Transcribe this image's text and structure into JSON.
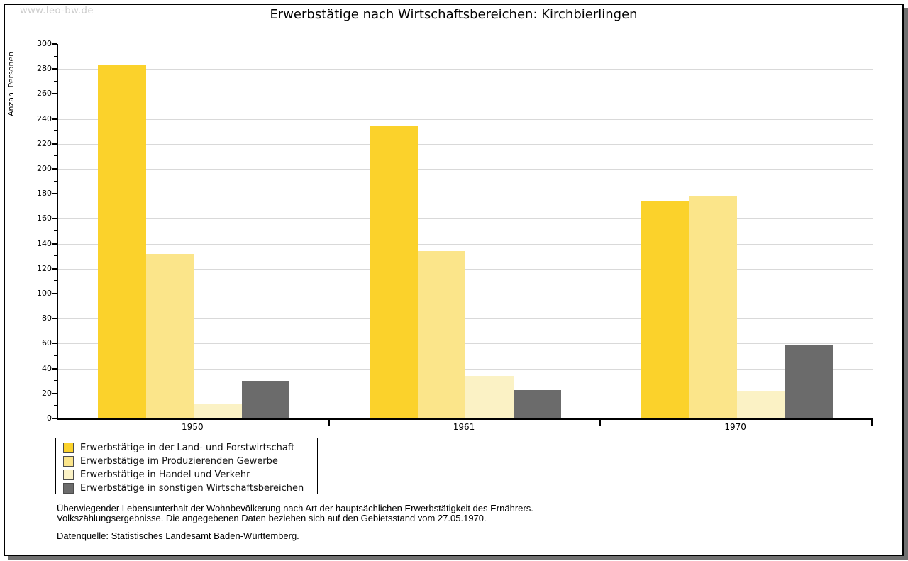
{
  "watermark": "www.leo-bw.de",
  "title": "Erwerbstätige nach Wirtschaftsbereichen: Kirchbierlingen",
  "chart_data": {
    "type": "bar",
    "title": "Erwerbstätige nach Wirtschaftsbereichen: Kirchbierlingen",
    "xlabel": "",
    "ylabel": "Anzahl Personen",
    "ylim": [
      0,
      300
    ],
    "ytick_major_step": 20,
    "ytick_minor_step": 10,
    "grid": true,
    "gridline_color": "#d9d9d9",
    "legend_position": "bottom-left",
    "categories": [
      "1950",
      "1961",
      "1970"
    ],
    "series": [
      {
        "name": "Erwerbstätige in der Land- und Forstwirtschaft",
        "color": "#fbd22b",
        "values": [
          283,
          234,
          174
        ]
      },
      {
        "name": "Erwerbstätige im Produzierenden Gewerbe",
        "color": "#fbe58a",
        "values": [
          132,
          134,
          178
        ]
      },
      {
        "name": "Erwerbstätige in Handel und Verkehr",
        "color": "#fbf2c5",
        "values": [
          12,
          34,
          22
        ]
      },
      {
        "name": "Erwerbstätige in sonstigen Wirtschaftsbereichen",
        "color": "#6b6b6b",
        "values": [
          30,
          23,
          59
        ]
      }
    ]
  },
  "footnotes": [
    "Überwiegender Lebensunterhalt der Wohnbevölkerung nach Art der hauptsächlichen Erwerbstätigkeit des Ernährers.",
    "Volkszählungsergebnisse. Die angegebenen Daten beziehen sich auf den Gebietsstand vom 27.05.1970."
  ],
  "source": "Datenquelle: Statistisches Landesamt Baden-Württemberg."
}
